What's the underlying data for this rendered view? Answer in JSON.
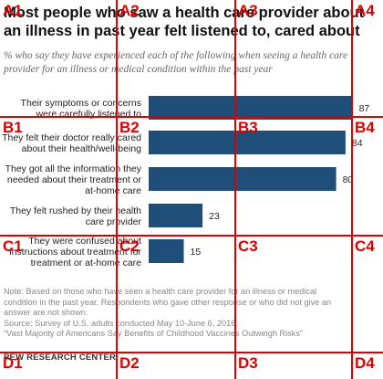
{
  "title": "Most people who saw a health care provider about an illness in past year felt listened to, cared about",
  "subtitle": "% who say they have experienced each of the following when seeing a health care provider for an illness or medical condition within the past year",
  "chart_data": {
    "type": "bar",
    "orientation": "horizontal",
    "categories": [
      [
        "Their symptoms or concerns",
        "were carefully listened to"
      ],
      [
        "They felt their doctor really cared",
        "about their health/well-being"
      ],
      [
        "They got all the information they",
        "needed about their treatment or",
        "at-home care"
      ],
      [
        "They felt rushed by their health",
        "care provider"
      ],
      [
        "They were confused about",
        "instructions about treatment for",
        "treatment or at-home care"
      ]
    ],
    "values": [
      87,
      84,
      80,
      23,
      15
    ],
    "xlim": [
      0,
      100
    ],
    "bar_color": "#1f4e79",
    "grid": false
  },
  "note": {
    "line1": "Note: Based on those who have seen a health care provider for an illness or medical",
    "line2": "condition in the past year. Respondents who gave other response or who did not give an",
    "line3": "answer are not shown.",
    "source": "Source: Survey of U.S. adults conducted May 10-June 6, 2016.",
    "report": "“Vast Majority of Americans Say Benefits of Childhood Vaccines Outweigh Risks”"
  },
  "logo": "PEW RESEARCH CENTER",
  "overlay": {
    "color": "#dd0000",
    "labels": [
      "A1",
      "A2",
      "A3",
      "A4",
      "B1",
      "B2",
      "B3",
      "B4",
      "C1",
      "C2",
      "C3",
      "C4",
      "D1",
      "D2",
      "D3",
      "D4"
    ]
  }
}
